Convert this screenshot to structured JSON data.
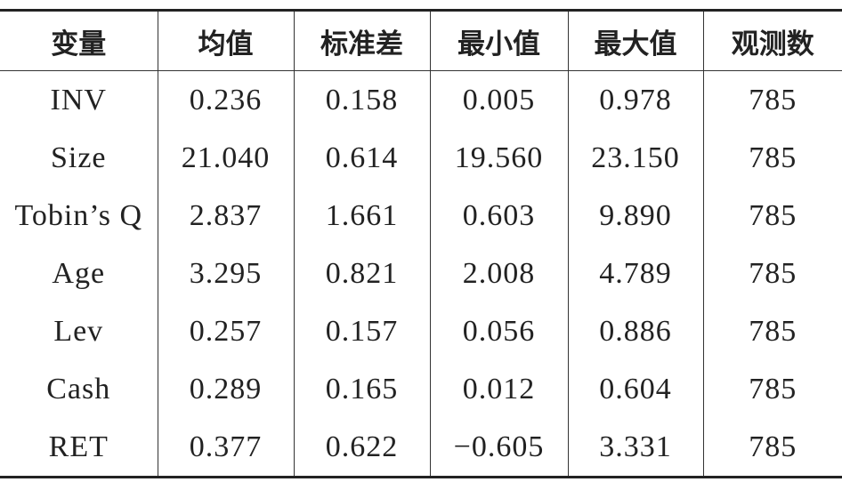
{
  "table": {
    "header": [
      "变量",
      "均值",
      "标准差",
      "最小值",
      "最大值",
      "观测数"
    ],
    "rows": [
      [
        "INV",
        "0.236",
        "0.158",
        "0.005",
        "0.978",
        "785"
      ],
      [
        "Size",
        "21.040",
        "0.614",
        "19.560",
        "23.150",
        "785"
      ],
      [
        "Tobin’s Q",
        "2.837",
        "1.661",
        "0.603",
        "9.890",
        "785"
      ],
      [
        "Age",
        "3.295",
        "0.821",
        "2.008",
        "4.789",
        "785"
      ],
      [
        "Lev",
        "0.257",
        "0.157",
        "0.056",
        "0.886",
        "785"
      ],
      [
        "Cash",
        "0.289",
        "0.165",
        "0.012",
        "0.604",
        "785"
      ],
      [
        "RET",
        "0.377",
        "0.622",
        "−0.605",
        "3.331",
        "785"
      ]
    ]
  }
}
